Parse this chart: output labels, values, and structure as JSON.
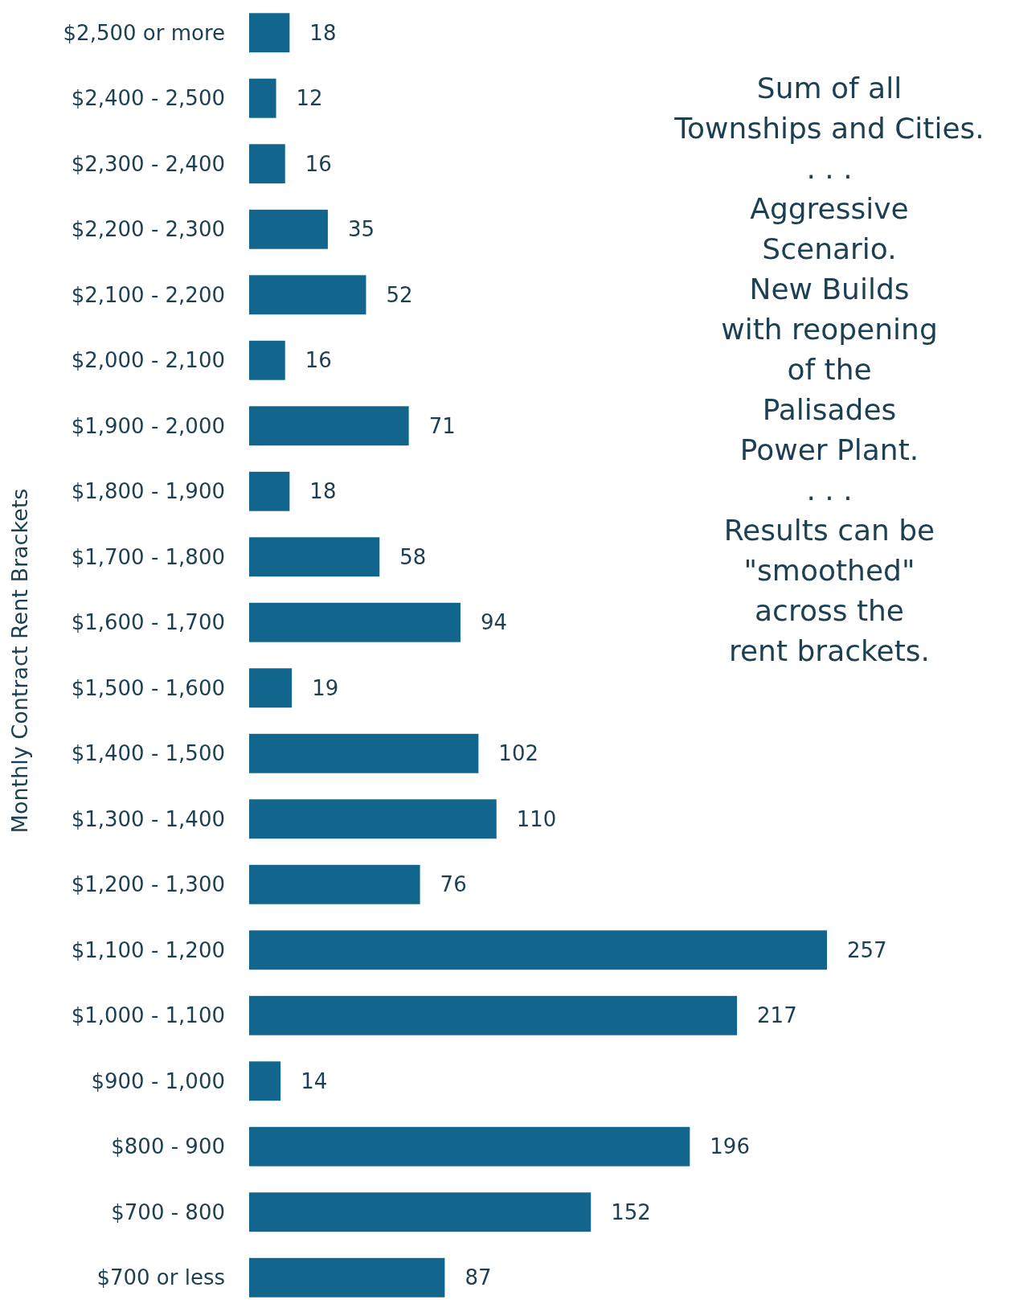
{
  "chart_data": {
    "type": "bar",
    "orientation": "horizontal",
    "ylabel": "Monthly Contract Rent Brackets",
    "categories": [
      "$2,500 or more",
      "$2,400 - 2,500",
      "$2,300 - 2,400",
      "$2,200 - 2,300",
      "$2,100 - 2,200",
      "$2,000 - 2,100",
      "$1,900 - 2,000",
      "$1,800 - 1,900",
      "$1,700 - 1,800",
      "$1,600 - 1,700",
      "$1,500 - 1,600",
      "$1,400 - 1,500",
      "$1,300 - 1,400",
      "$1,200 - 1,300",
      "$1,100 - 1,200",
      "$1,000 - 1,100",
      "$900 - 1,000",
      "$800 - 900",
      "$700 - 800",
      "$700 or less"
    ],
    "values": [
      18,
      12,
      16,
      35,
      52,
      16,
      71,
      18,
      58,
      94,
      19,
      102,
      110,
      76,
      257,
      217,
      14,
      196,
      152,
      87
    ],
    "color": "#12668e",
    "data_labels": true,
    "annotations": [
      "Sum of all\nTownships and Cities.\n. . .\nAggressive\nScenario.\nNew Builds\nwith reopening\nof the\nPalisades\nPower Plant.\n. . .\nResults can be\n\"smoothed\"\nacross the\nrent brackets."
    ]
  }
}
